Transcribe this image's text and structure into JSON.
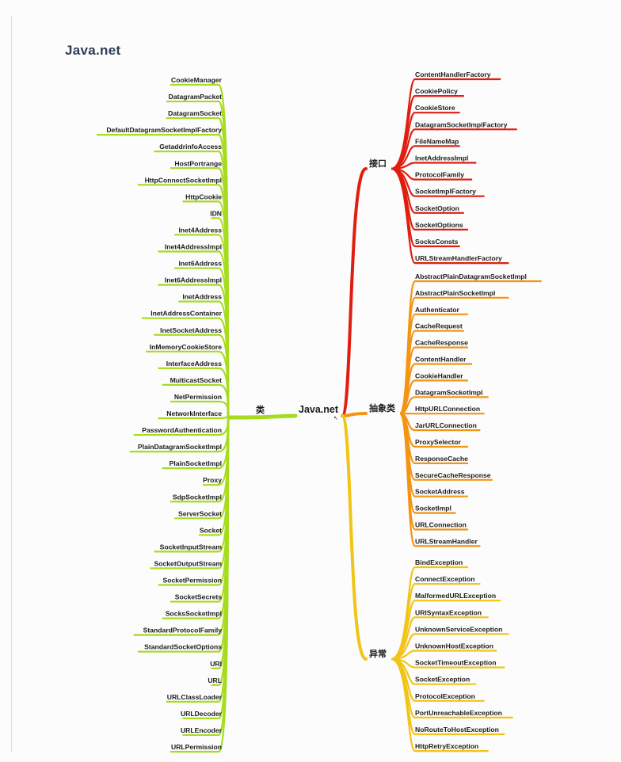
{
  "title": "Java.net",
  "root": "Java.net",
  "colors": {
    "classes": "#a6dc1e",
    "interfaces": "#e01e10",
    "abstract": "#f39412",
    "exceptions": "#f2c416"
  },
  "branches": {
    "classes": {
      "label": "类",
      "items": [
        "CookieManager",
        "DatagramPacket",
        "DatagramSocket",
        "DefaultDatagramSocketImplFactory",
        "GetaddrinfoAccess",
        "HostPortrange",
        "HttpConnectSocketImpl",
        "HttpCookie",
        "IDN",
        "Inet4Address",
        "Inet4AddressImpl",
        "Inet6Address",
        "Inet6AddressImpl",
        "InetAddress",
        "InetAddressContainer",
        "InetSocketAddress",
        "InMemoryCookieStore",
        "InterfaceAddress",
        "MulticastSocket",
        "NetPermission",
        "NetworkInterface",
        "PasswordAuthentication",
        "PlainDatagramSocketImpl",
        "PlainSocketImpl",
        "Proxy",
        "SdpSocketImpl",
        "ServerSocket",
        "Socket",
        "SocketInputStream",
        "SocketOutputStream",
        "SocketPermission",
        "SocketSecrets",
        "SocksSocketImpl",
        "StandardProtocolFamily",
        "StandardSocketOptions",
        "URI",
        "URL",
        "URLClassLoader",
        "URLDecoder",
        "URLEncoder",
        "URLPermission"
      ]
    },
    "interfaces": {
      "label": "接口",
      "items": [
        "ContentHandlerFactory",
        "CookiePolicy",
        "CookieStore",
        "DatagramSocketImplFactory",
        "FileNameMap",
        "InetAddressImpl",
        "ProtocolFamily",
        "SocketImplFactory",
        "SocketOption",
        "SocketOptions",
        "SocksConsts",
        "URLStreamHandlerFactory"
      ]
    },
    "abstract": {
      "label": "抽象类",
      "items": [
        "AbstractPlainDatagramSocketImpl",
        "AbstractPlainSocketImpl",
        "Authenticator",
        "CacheRequest",
        "CacheResponse",
        "ContentHandler",
        "CookieHandler",
        "DatagramSocketImpl",
        "HttpURLConnection",
        "JarURLConnection",
        "ProxySelector",
        "ResponseCache",
        "SecureCacheResponse",
        "SocketAddress",
        "SocketImpl",
        "URLConnection",
        "URLStreamHandler"
      ]
    },
    "exceptions": {
      "label": "异常",
      "items": [
        "BindException",
        "ConnectException",
        "MalformedURLException",
        "URISyntaxException",
        "UnknownServiceException",
        "UnknownHostException",
        "SocketTimeoutException",
        "SocketException",
        "ProtocolException",
        "PortUnreachableException",
        "NoRouteToHostException",
        "HttpRetryException"
      ]
    }
  }
}
